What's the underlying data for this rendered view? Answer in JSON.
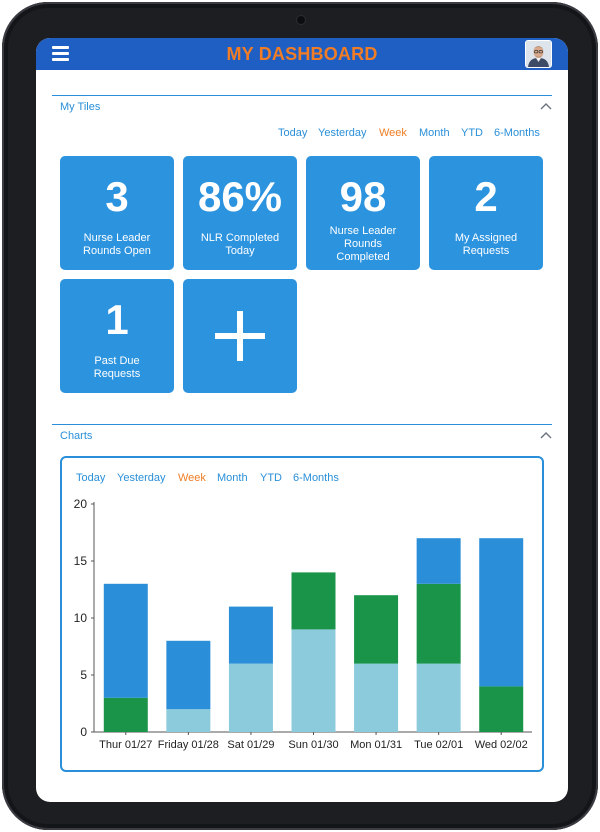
{
  "header": {
    "title": "MY DASHBOARD"
  },
  "icons": {
    "menu": "hamburger-menu-icon",
    "avatar": "user-avatar",
    "collapse": "chevron-up-icon",
    "add": "plus-icon"
  },
  "tiles_section": {
    "title": "My Tiles",
    "filters": [
      "Today",
      "Yesterday",
      "Week",
      "Month",
      "YTD",
      "6-Months"
    ],
    "active_filter": "Week",
    "tiles": [
      {
        "value": "3",
        "label_lines": [
          "Nurse Leader",
          "Rounds Open"
        ]
      },
      {
        "value": "86%",
        "label_lines": [
          "NLR Completed",
          "Today"
        ]
      },
      {
        "value": "98",
        "label_lines": [
          "Nurse Leader",
          "Rounds",
          "Completed"
        ]
      },
      {
        "value": "2",
        "label_lines": [
          "My Assigned",
          "Requests"
        ]
      },
      {
        "value": "1",
        "label_lines": [
          "Past Due",
          "Requests"
        ]
      }
    ]
  },
  "charts_section": {
    "title": "Charts",
    "filters": [
      "Today",
      "Yesterday",
      "Week",
      "Month",
      "YTD",
      "6-Months"
    ],
    "active_filter": "Week"
  },
  "colors": {
    "header": "#1f5fc4",
    "accent_orange": "#f07d25",
    "accent_blue": "#2a8fd8",
    "tile": "#2c93df",
    "bar_light": "#8ccbdc",
    "bar_green": "#1a9448",
    "bar_blue": "#2a8fd8"
  },
  "chart_data": {
    "type": "bar",
    "stacked": true,
    "categories": [
      "Thur 01/27",
      "Friday 01/28",
      "Sat 01/29",
      "Sun 01/30",
      "Mon 01/31",
      "Tue 02/01",
      "Wed 02/02"
    ],
    "series": [
      {
        "color": "#8ccbdc",
        "values": [
          0,
          2,
          6,
          9,
          6,
          6,
          0
        ]
      },
      {
        "color": "#1a9448",
        "values": [
          3,
          0,
          0,
          5,
          6,
          7,
          4
        ]
      },
      {
        "color": "#2a8fd8",
        "values": [
          10,
          6,
          5,
          0,
          0,
          4,
          13
        ]
      }
    ],
    "ylim": [
      0,
      20
    ],
    "yticks": [
      "0",
      "5",
      "10",
      "15",
      "20"
    ],
    "ytick_values": [
      0,
      5,
      10,
      15,
      20
    ],
    "grid": false,
    "legend": "none"
  }
}
